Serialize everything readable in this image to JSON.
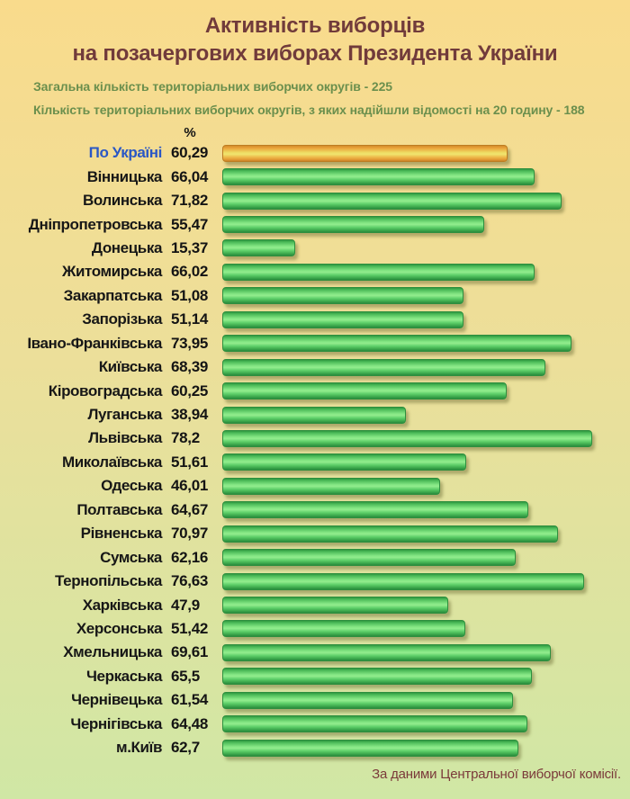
{
  "title": {
    "line1": "Активність виборців",
    "line2": "на позачергових виборах Президента України"
  },
  "subtitle": {
    "line1": "Загальна кількість територіальних виборчих округів - 225",
    "line2": "Кількість територіальних виборчих округів, з яких надійшли відомості на 20 годину - 188"
  },
  "source": "За даними Центральної виборчої комісії.",
  "colors": {
    "background_top": "#f9db8c",
    "background_bottom": "#d0e7a5",
    "title_color": "#713b3b",
    "subtitle_color": "#6b8f4d",
    "highlight_blue": "#2a57c5",
    "bar_green": "#46b856",
    "bar_orange": "#eaa33a",
    "source_color": "#7b3a3a"
  },
  "chart_data": {
    "type": "bar",
    "orientation": "horizontal",
    "title": "Активність виборців на позачергових виборах Президента України",
    "unit": "%",
    "xlim": [
      0,
      80
    ],
    "grid": false,
    "legend": "none",
    "highlight_index": 0,
    "categories": [
      "По Україні",
      "Вінницька",
      "Волинська",
      "Дніпропетровська",
      "Донецька",
      "Житомирська",
      "Закарпатська",
      "Запорізька",
      "Івано-Франківська",
      "Київська",
      "Кіровоградська",
      "Луганська",
      "Львівська",
      "Миколаївська",
      "Одеська",
      "Полтавська",
      "Рівненська",
      "Сумська",
      "Тернопільська",
      "Харківська",
      "Херсонська",
      "Хмельницька",
      "Черкаська",
      "Чернівецька",
      "Чернігівська",
      "м.Київ"
    ],
    "values": [
      60.29,
      66.04,
      71.82,
      55.47,
      15.37,
      66.02,
      51.08,
      51.14,
      73.95,
      68.39,
      60.25,
      38.94,
      78.2,
      51.61,
      46.01,
      64.67,
      70.97,
      62.16,
      76.63,
      47.9,
      51.42,
      69.61,
      65.5,
      61.54,
      64.48,
      62.7
    ],
    "value_labels": [
      "60,29",
      "66,04",
      "71,82",
      "55,47",
      "15,37",
      "66,02",
      "51,08",
      "51,14",
      "73,95",
      "68,39",
      "60,25",
      "38,94",
      "78,2",
      "51,61",
      "46,01",
      "64,67",
      "70,97",
      "62,16",
      "76,63",
      "47,9",
      "51,42",
      "69,61",
      "65,5",
      "61,54",
      "64,48",
      "62,7"
    ]
  }
}
